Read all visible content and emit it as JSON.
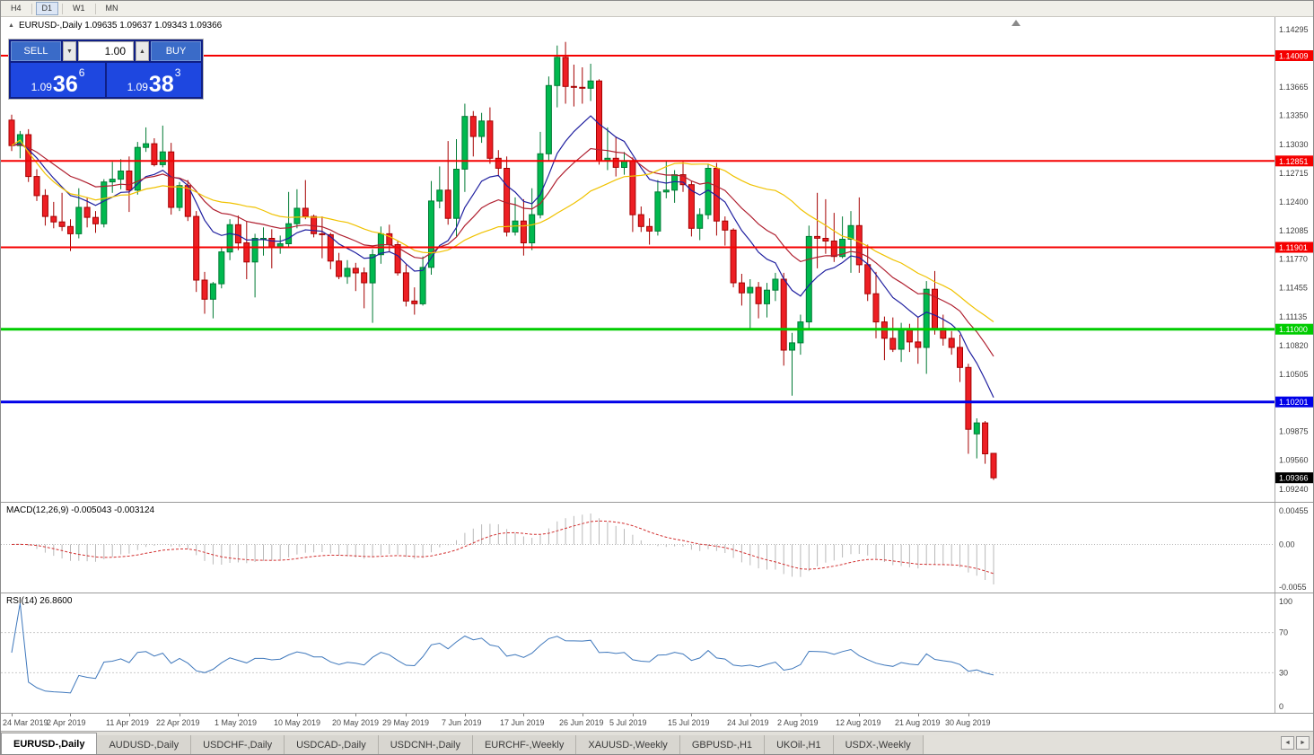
{
  "toolbar": {
    "timeframes": [
      "H4",
      "D1",
      "W1",
      "MN"
    ],
    "active": "D1"
  },
  "chart": {
    "title": "EURUSD-,Daily 1.09635 1.09637 1.09343 1.09366",
    "symbol": "EURUSD-,Daily",
    "open": "1.09635",
    "high": "1.09637",
    "low": "1.09343",
    "close": "1.09366",
    "collapse_icon": "▲"
  },
  "trade": {
    "sell_label": "SELL",
    "buy_label": "BUY",
    "volume": "1.00",
    "volume_down_icon": "▼",
    "volume_up_icon": "▲",
    "sell_price": {
      "prefix": "1.09",
      "big": "36",
      "pip": "6"
    },
    "buy_price": {
      "prefix": "1.09",
      "big": "38",
      "pip": "3"
    },
    "colors": {
      "price_box_blue": "#1e47e0",
      "button_blue": "#3a6bc8"
    }
  },
  "macd_panel": {
    "label": "MACD(12,26,9) -0.005043 -0.003124",
    "axis": [
      "0.00455",
      "0.00",
      "-0.0055"
    ]
  },
  "rsi_panel": {
    "label": "RSI(14) 26.8600",
    "axis": [
      "100",
      "70",
      "30",
      "0"
    ]
  },
  "tabbar": {
    "tabs": [
      "EURUSD-,Daily",
      "AUDUSD-,Daily",
      "USDCHF-,Daily",
      "USDCAD-,Daily",
      "USDCNH-,Daily",
      "EURCHF-,Weekly",
      "XAUUSD-,Weekly",
      "GBPUSD-,H1",
      "UKOil-,H1",
      "USDX-,Weekly"
    ],
    "active_index": 0,
    "scroll_left_icon": "◄",
    "scroll_right_icon": "►"
  },
  "chart_data": {
    "type": "candlestick",
    "symbol": "EURUSD",
    "timeframe": "Daily",
    "title": "EURUSD-,Daily",
    "y_axis": {
      "min": 1.0924,
      "max": 1.14295,
      "ticks": [
        1.14295,
        1.13665,
        1.1335,
        1.1303,
        1.12715,
        1.124,
        1.12085,
        1.1177,
        1.11455,
        1.11135,
        1.1082,
        1.10505,
        1.09875,
        1.0956,
        1.0924
      ]
    },
    "x_tick_indices": [
      0,
      7,
      14,
      20,
      27,
      34,
      41,
      47,
      54,
      61,
      68,
      74,
      81,
      88,
      94,
      101,
      108,
      114
    ],
    "x_tick_labels": [
      "24 Mar 2019",
      "2 Apr 2019",
      "11 Apr 2019",
      "22 Apr 2019",
      "1 May 2019",
      "10 May 2019",
      "20 May 2019",
      "29 May 2019",
      "7 Jun 2019",
      "17 Jun 2019",
      "26 Jun 2019",
      "5 Jul 2019",
      "15 Jul 2019",
      "24 Jul 2019",
      "2 Aug 2019",
      "12 Aug 2019",
      "21 Aug 2019",
      "30 Aug 2019"
    ],
    "hlines": [
      {
        "price": 1.14009,
        "color": "#f50000",
        "width": 2
      },
      {
        "price": 1.12851,
        "color": "#f50000",
        "width": 2
      },
      {
        "price": 1.11901,
        "color": "#f50000",
        "width": 2
      },
      {
        "price": 1.11,
        "color": "#00cc00",
        "width": 3
      },
      {
        "price": 1.10201,
        "color": "#0000e8",
        "width": 3
      }
    ],
    "current_price": {
      "price": 1.09366,
      "color": "#000000"
    },
    "moving_averages": [
      {
        "method": "ema",
        "period": 10,
        "color": "#2020a0"
      },
      {
        "method": "ema",
        "period": 20,
        "color": "#b02030"
      },
      {
        "method": "sma",
        "period": 30,
        "color": "#f0c200"
      }
    ],
    "indicators": {
      "macd": {
        "fast": 12,
        "slow": 26,
        "signal": 9,
        "range": [
          -0.0055,
          0.00455
        ],
        "display_values": "-0.005043 -0.003124"
      },
      "rsi": {
        "period": 14,
        "levels": [
          30,
          70
        ],
        "range": [
          0,
          100
        ],
        "display_value": "26.8600"
      }
    },
    "colors": {
      "bull": "#00b94f",
      "bull_border": "#007a34",
      "bear": "#ed1f24",
      "bear_border": "#a50000",
      "macd_hist": "#b9b9b9",
      "macd_signal": "#d23030",
      "rsi": "#3f78bc"
    },
    "ohlc": [
      [
        1.133,
        1.1336,
        1.1296,
        1.1302
      ],
      [
        1.1302,
        1.1318,
        1.1288,
        1.1314
      ],
      [
        1.1314,
        1.132,
        1.1262,
        1.1268
      ],
      [
        1.1268,
        1.1276,
        1.1241,
        1.1247
      ],
      [
        1.1247,
        1.1254,
        1.1214,
        1.1224
      ],
      [
        1.1224,
        1.124,
        1.1211,
        1.1218
      ],
      [
        1.1218,
        1.125,
        1.1208,
        1.1213
      ],
      [
        1.1213,
        1.1221,
        1.1186,
        1.1205
      ],
      [
        1.1205,
        1.1255,
        1.12,
        1.1234
      ],
      [
        1.1234,
        1.1245,
        1.1212,
        1.1223
      ],
      [
        1.1223,
        1.123,
        1.1206,
        1.1216
      ],
      [
        1.1216,
        1.1265,
        1.1212,
        1.1262
      ],
      [
        1.1262,
        1.1284,
        1.125,
        1.1265
      ],
      [
        1.1265,
        1.1287,
        1.1254,
        1.1274
      ],
      [
        1.1274,
        1.129,
        1.1229,
        1.1253
      ],
      [
        1.1253,
        1.1306,
        1.1248,
        1.13
      ],
      [
        1.13,
        1.1322,
        1.1295,
        1.1304
      ],
      [
        1.1304,
        1.131,
        1.1279,
        1.1281
      ],
      [
        1.1281,
        1.1324,
        1.1278,
        1.1295
      ],
      [
        1.1295,
        1.1305,
        1.1226,
        1.1234
      ],
      [
        1.1234,
        1.1262,
        1.123,
        1.1258
      ],
      [
        1.1258,
        1.1264,
        1.1219,
        1.1224
      ],
      [
        1.1224,
        1.123,
        1.1141,
        1.1154
      ],
      [
        1.1154,
        1.1163,
        1.1117,
        1.1133
      ],
      [
        1.1133,
        1.1152,
        1.1112,
        1.115
      ],
      [
        1.115,
        1.119,
        1.1145,
        1.1185
      ],
      [
        1.1185,
        1.1221,
        1.1176,
        1.1215
      ],
      [
        1.1215,
        1.1225,
        1.1187,
        1.1195
      ],
      [
        1.1195,
        1.1219,
        1.1155,
        1.1174
      ],
      [
        1.1174,
        1.1205,
        1.1135,
        1.12
      ],
      [
        1.12,
        1.1212,
        1.1181,
        1.12
      ],
      [
        1.12,
        1.121,
        1.1167,
        1.119
      ],
      [
        1.119,
        1.1203,
        1.1183,
        1.1194
      ],
      [
        1.1194,
        1.1251,
        1.119,
        1.1216
      ],
      [
        1.1216,
        1.1254,
        1.1211,
        1.1233
      ],
      [
        1.1233,
        1.1264,
        1.1221,
        1.1224
      ],
      [
        1.1224,
        1.1226,
        1.1201,
        1.1205
      ],
      [
        1.1205,
        1.1224,
        1.1178,
        1.1204
      ],
      [
        1.1204,
        1.1206,
        1.1166,
        1.1175
      ],
      [
        1.1175,
        1.1184,
        1.1155,
        1.1158
      ],
      [
        1.1158,
        1.1176,
        1.115,
        1.1167
      ],
      [
        1.1167,
        1.1173,
        1.1142,
        1.1162
      ],
      [
        1.1162,
        1.1168,
        1.1123,
        1.1151
      ],
      [
        1.1151,
        1.1188,
        1.1107,
        1.1182
      ],
      [
        1.1182,
        1.1213,
        1.1172,
        1.1205
      ],
      [
        1.1205,
        1.1215,
        1.1185,
        1.1193
      ],
      [
        1.1193,
        1.1197,
        1.1159,
        1.1162
      ],
      [
        1.1162,
        1.1171,
        1.1125,
        1.1131
      ],
      [
        1.1131,
        1.1146,
        1.1116,
        1.1128
      ],
      [
        1.1128,
        1.118,
        1.1126,
        1.1168
      ],
      [
        1.1168,
        1.1263,
        1.116,
        1.1241
      ],
      [
        1.1241,
        1.1279,
        1.1233,
        1.1253
      ],
      [
        1.1253,
        1.1307,
        1.1215,
        1.1222
      ],
      [
        1.1222,
        1.1309,
        1.1202,
        1.1276
      ],
      [
        1.1276,
        1.1348,
        1.1251,
        1.1334
      ],
      [
        1.1334,
        1.134,
        1.129,
        1.1312
      ],
      [
        1.1312,
        1.1338,
        1.1305,
        1.1329
      ],
      [
        1.1329,
        1.1344,
        1.1282,
        1.1288
      ],
      [
        1.1288,
        1.1297,
        1.1268,
        1.1277
      ],
      [
        1.1277,
        1.129,
        1.1202,
        1.1207
      ],
      [
        1.1207,
        1.1245,
        1.1203,
        1.1219
      ],
      [
        1.1219,
        1.1243,
        1.1181,
        1.1195
      ],
      [
        1.1195,
        1.1255,
        1.1187,
        1.1226
      ],
      [
        1.1226,
        1.1317,
        1.1222,
        1.1293
      ],
      [
        1.1293,
        1.1378,
        1.1285,
        1.1368
      ],
      [
        1.1368,
        1.1412,
        1.1344,
        1.1399
      ],
      [
        1.1399,
        1.1416,
        1.1348,
        1.1367
      ],
      [
        1.1367,
        1.1391,
        1.1345,
        1.1366
      ],
      [
        1.1366,
        1.1388,
        1.1348,
        1.1365
      ],
      [
        1.1365,
        1.1392,
        1.1351,
        1.1373
      ],
      [
        1.1373,
        1.1375,
        1.1281,
        1.1285
      ],
      [
        1.1285,
        1.1322,
        1.1275,
        1.1288
      ],
      [
        1.1288,
        1.1312,
        1.1268,
        1.1278
      ],
      [
        1.1278,
        1.1295,
        1.127,
        1.1285
      ],
      [
        1.1285,
        1.1289,
        1.1207,
        1.1226
      ],
      [
        1.1226,
        1.1235,
        1.1207,
        1.1213
      ],
      [
        1.1213,
        1.1222,
        1.1193,
        1.1208
      ],
      [
        1.1208,
        1.1264,
        1.1203,
        1.1251
      ],
      [
        1.1251,
        1.1285,
        1.1244,
        1.1253
      ],
      [
        1.1253,
        1.1275,
        1.1239,
        1.127
      ],
      [
        1.127,
        1.1284,
        1.1251,
        1.1259
      ],
      [
        1.1259,
        1.1263,
        1.1202,
        1.1211
      ],
      [
        1.1211,
        1.1233,
        1.1198,
        1.1226
      ],
      [
        1.1226,
        1.1282,
        1.1221,
        1.1277
      ],
      [
        1.1277,
        1.1283,
        1.1203,
        1.1219
      ],
      [
        1.1219,
        1.1224,
        1.1192,
        1.1209
      ],
      [
        1.1209,
        1.1211,
        1.1146,
        1.1151
      ],
      [
        1.1151,
        1.1161,
        1.1126,
        1.114
      ],
      [
        1.114,
        1.1155,
        1.1101,
        1.1146
      ],
      [
        1.1146,
        1.1152,
        1.1112,
        1.1128
      ],
      [
        1.1128,
        1.1151,
        1.1113,
        1.1143
      ],
      [
        1.1143,
        1.1162,
        1.1131,
        1.1155
      ],
      [
        1.1155,
        1.1162,
        1.106,
        1.1077
      ],
      [
        1.1077,
        1.1096,
        1.1027,
        1.1085
      ],
      [
        1.1085,
        1.1116,
        1.1072,
        1.1108
      ],
      [
        1.1108,
        1.1214,
        1.1101,
        1.1202
      ],
      [
        1.1202,
        1.125,
        1.1167,
        1.12
      ],
      [
        1.12,
        1.1243,
        1.1183,
        1.1197
      ],
      [
        1.1197,
        1.1228,
        1.1174,
        1.118
      ],
      [
        1.118,
        1.1224,
        1.1178,
        1.1199
      ],
      [
        1.1199,
        1.123,
        1.1162,
        1.1214
      ],
      [
        1.1214,
        1.1245,
        1.1162,
        1.1171
      ],
      [
        1.1171,
        1.1193,
        1.1131,
        1.1139
      ],
      [
        1.1139,
        1.1163,
        1.109,
        1.1108
      ],
      [
        1.1108,
        1.1114,
        1.1066,
        1.109
      ],
      [
        1.109,
        1.1113,
        1.1075,
        1.1078
      ],
      [
        1.1078,
        1.1107,
        1.1064,
        1.1099
      ],
      [
        1.1099,
        1.1106,
        1.1075,
        1.1086
      ],
      [
        1.1086,
        1.1113,
        1.1062,
        1.108
      ],
      [
        1.108,
        1.1153,
        1.1051,
        1.1144
      ],
      [
        1.1144,
        1.1164,
        1.1094,
        1.1101
      ],
      [
        1.1101,
        1.1116,
        1.1082,
        1.109
      ],
      [
        1.109,
        1.1098,
        1.1072,
        1.108
      ],
      [
        1.108,
        1.1094,
        1.1042,
        1.1058
      ],
      [
        1.1058,
        1.1062,
        1.0963,
        1.099
      ],
      [
        1.0985,
        1.1002,
        1.0958,
        1.0997
      ],
      [
        1.0997,
        1.0999,
        1.0952,
        1.0963
      ],
      [
        1.09635,
        1.09637,
        1.09343,
        1.09366
      ]
    ]
  }
}
